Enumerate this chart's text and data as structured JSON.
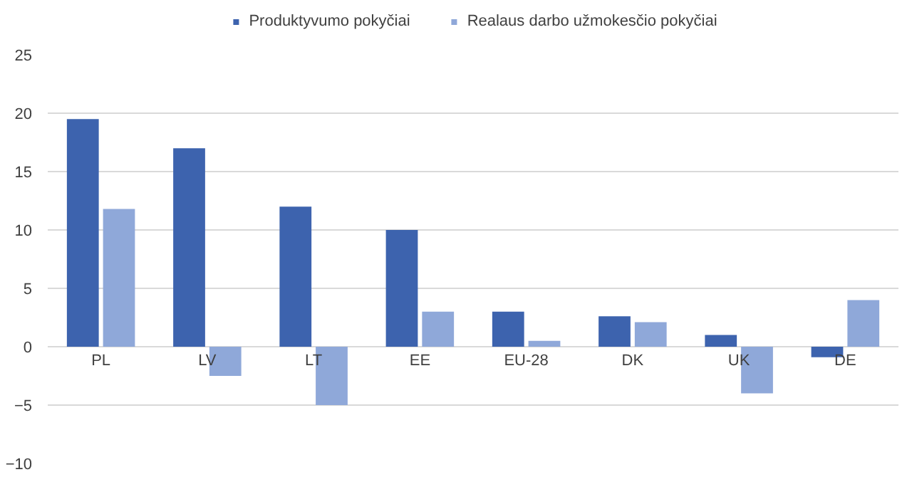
{
  "chart_data": {
    "type": "bar",
    "categories": [
      "PL",
      "LV",
      "LT",
      "EE",
      "EU-28",
      "DK",
      "UK",
      "DE"
    ],
    "series": [
      {
        "name": "Produktyvumo pokyčiai",
        "color": "#3d63ae",
        "values": [
          19.5,
          17,
          12,
          10,
          3,
          2.6,
          1,
          -0.9
        ]
      },
      {
        "name": "Realaus darbo užmokesčio pokyčiai",
        "color": "#8fa8d9",
        "values": [
          11.8,
          -2.5,
          -5,
          3,
          0.5,
          2.1,
          -4,
          4
        ]
      }
    ],
    "ylim": [
      -10,
      25
    ],
    "yticks": [
      -10,
      -5,
      0,
      5,
      10,
      15,
      20,
      25
    ],
    "grid": "y",
    "legend": "top"
  }
}
